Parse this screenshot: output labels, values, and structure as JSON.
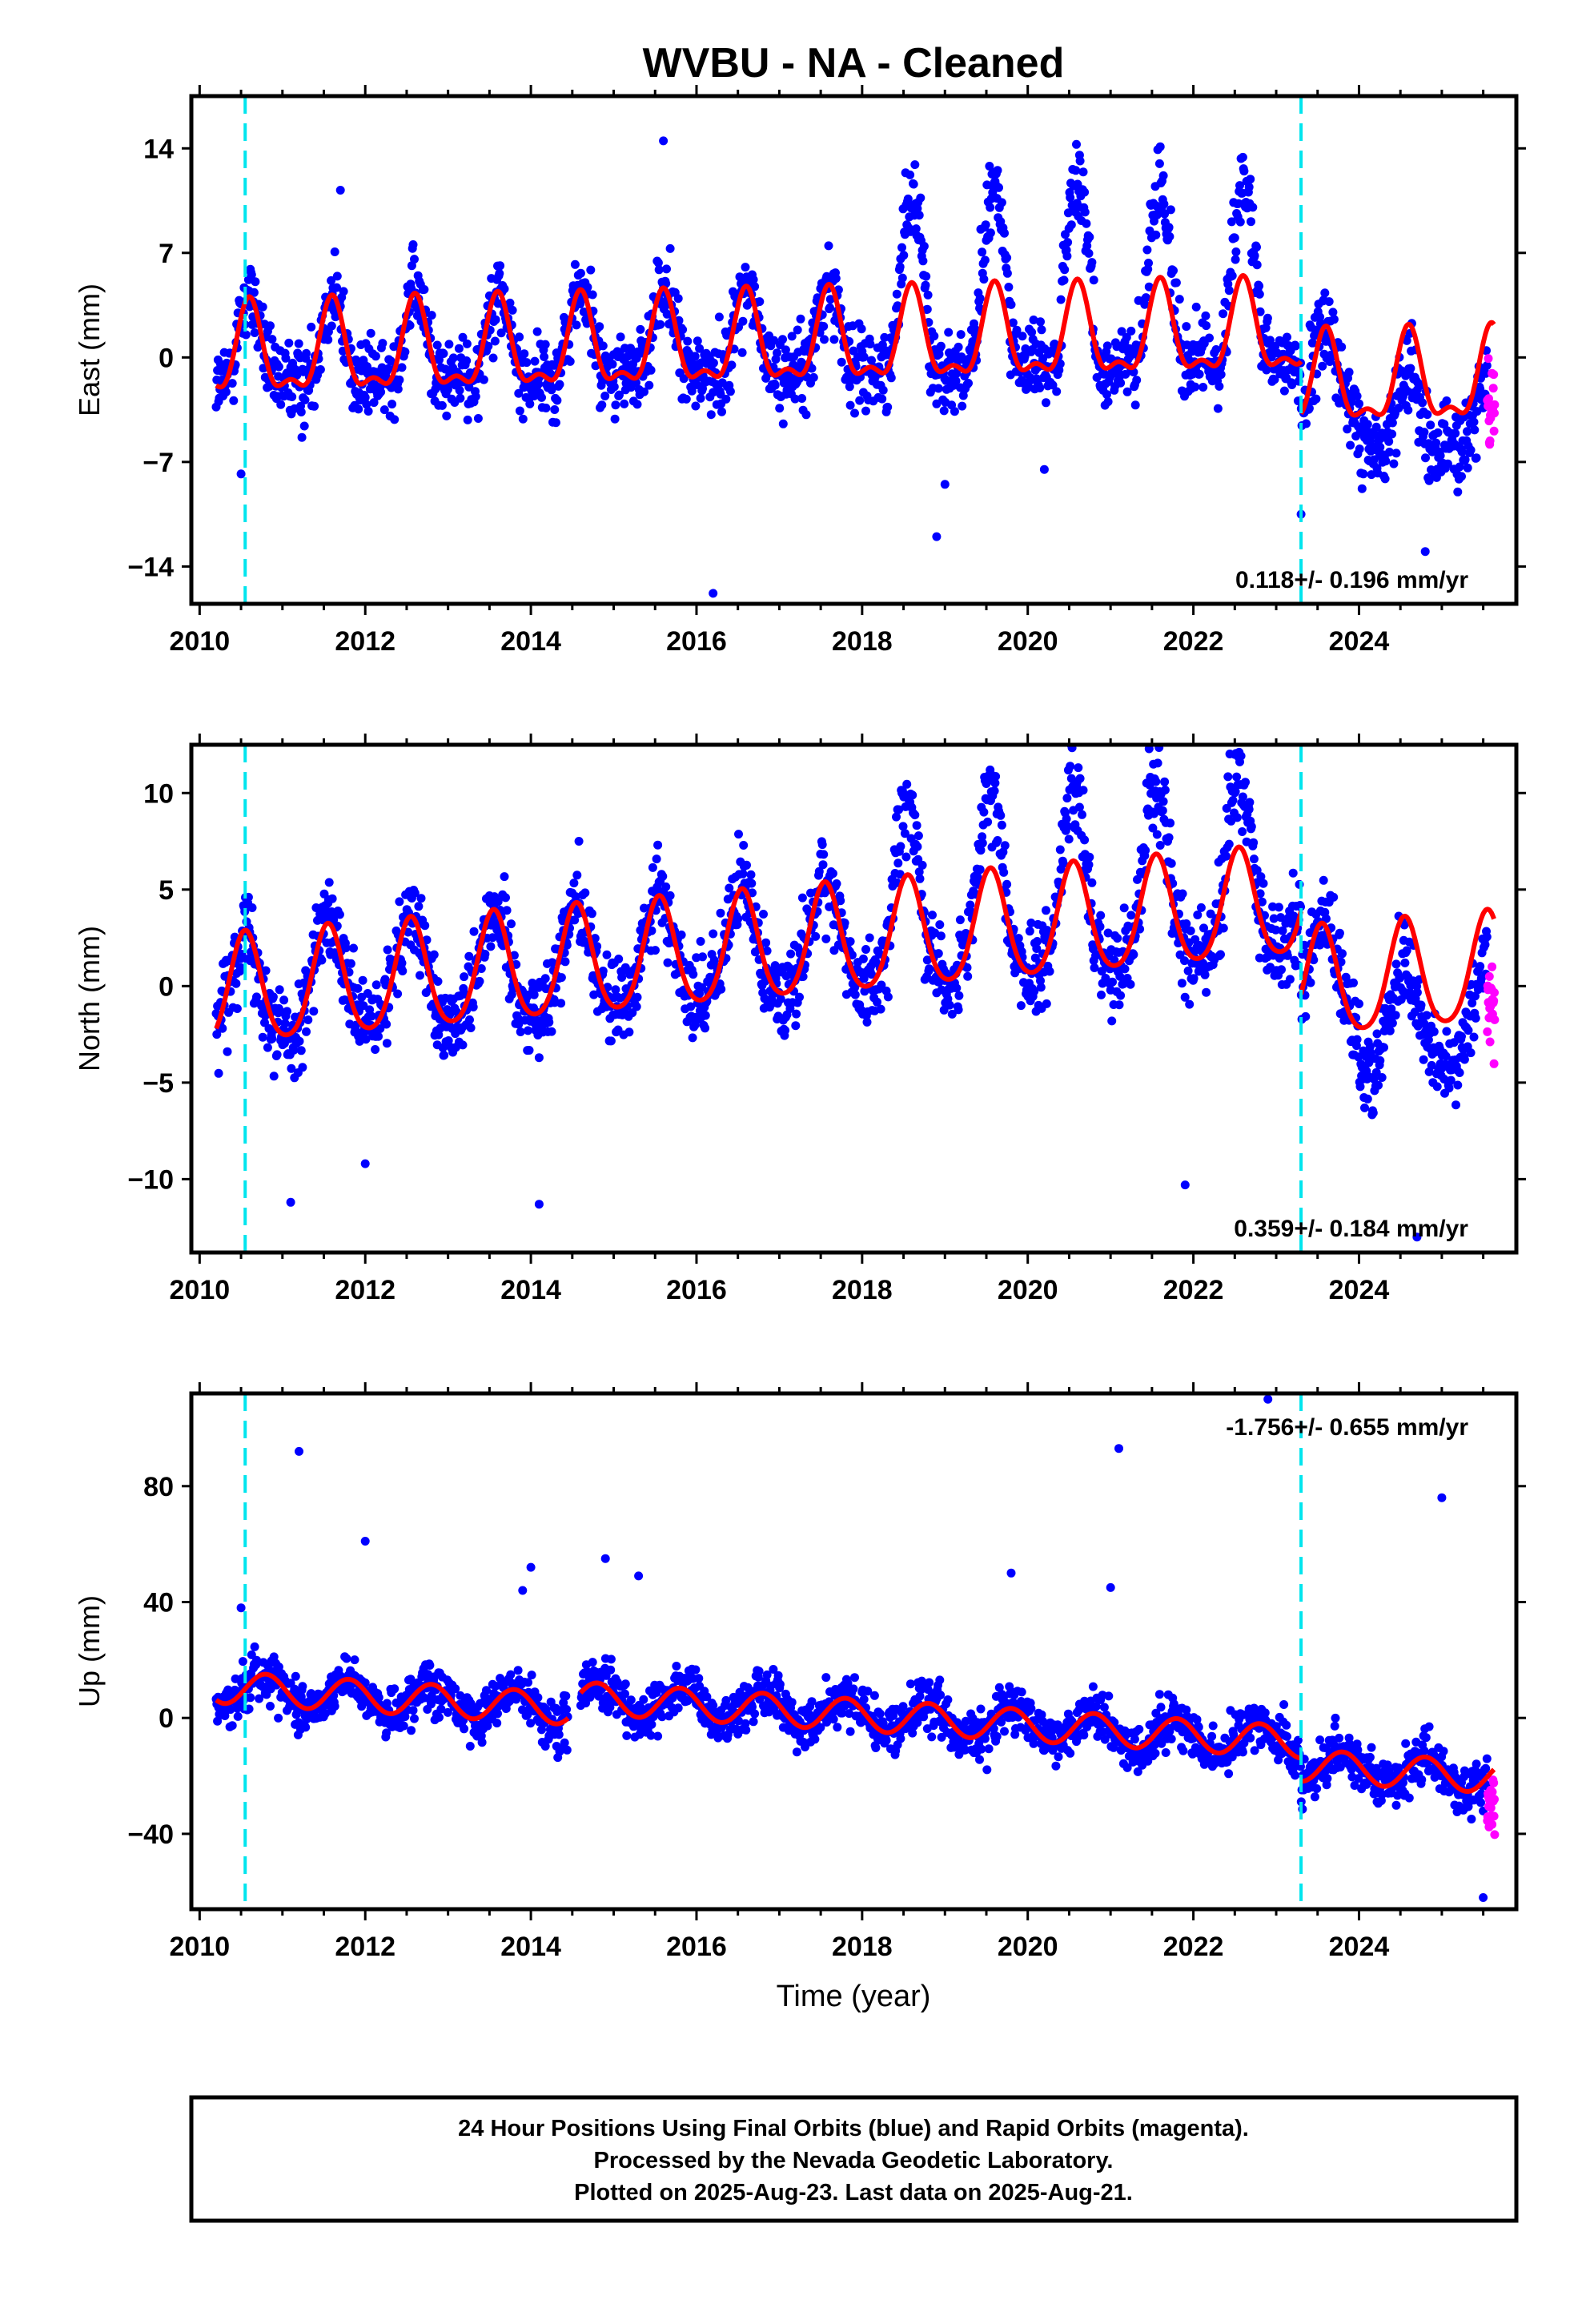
{
  "title": "WVBU  - NA - Cleaned",
  "footer": {
    "line1": "24 Hour Positions Using Final Orbits (blue) and Rapid Orbits (magenta).",
    "line2": "Processed by the Nevada Geodetic Laboratory.",
    "line3": "Plotted on 2025-Aug-23. Last data on 2025-Aug-21."
  },
  "colors": {
    "final": "#0000ff",
    "rapid": "#ff00ff",
    "model": "#ff0000",
    "event": "#00e5ee",
    "axis": "#000000"
  },
  "xlabel": "Time (year)",
  "chart_data": [
    {
      "type": "scatter",
      "component": "east",
      "ylabel": "East (mm)",
      "xlim": [
        2009.9,
        2025.9
      ],
      "ylim": [
        -16.5,
        17.5
      ],
      "yticks": [
        14,
        7,
        0,
        -7,
        -14
      ],
      "ytick_labels": [
        "14",
        "7",
        "0",
        "−7",
        "−14"
      ],
      "xticks": [
        2010,
        2012,
        2014,
        2016,
        2018,
        2020,
        2022,
        2024
      ],
      "rate_label": "0.118+/- 0.196 mm/yr",
      "rate_position": "bottom-right",
      "event_lines": [
        2010.55,
        2023.3
      ],
      "model": {
        "segments": [
          {
            "start": 2010.2,
            "end": 2023.3,
            "offset": 0.0,
            "slope": 0.118
          },
          {
            "start": 2023.3,
            "end": 2025.63,
            "offset": -3.5,
            "slope": 0.118
          }
        ],
        "annual_amp": 2.8,
        "semiannual_amp": 1.2,
        "peak": 0.6
      },
      "outliers": [
        [
          2010.5,
          -7.8
        ],
        [
          2011.7,
          11.2
        ],
        [
          2015.6,
          14.5
        ],
        [
          2016.2,
          -15.8
        ],
        [
          2018.9,
          -12.0
        ],
        [
          2019.0,
          -8.5
        ],
        [
          2020.2,
          -7.5
        ],
        [
          2023.3,
          -10.5
        ],
        [
          2024.8,
          -13.0
        ]
      ]
    },
    {
      "type": "scatter",
      "component": "north",
      "ylabel": "North (mm)",
      "xlim": [
        2009.9,
        2025.9
      ],
      "ylim": [
        -13.8,
        12.5
      ],
      "yticks": [
        10,
        5,
        0,
        -5,
        -10
      ],
      "ytick_labels": [
        "10",
        "5",
        "0",
        "−5",
        "−10"
      ],
      "xticks": [
        2010,
        2012,
        2014,
        2016,
        2018,
        2020,
        2022,
        2024
      ],
      "rate_label": "0.359+/- 0.184 mm/yr",
      "rate_position": "bottom-right",
      "event_lines": [
        2010.55,
        2023.3
      ],
      "model": {
        "segments": [
          {
            "start": 2010.2,
            "end": 2023.3,
            "offset": -0.5,
            "slope": 0.359
          },
          {
            "start": 2023.3,
            "end": 2025.63,
            "offset": -4.8,
            "slope": 0.359
          }
        ],
        "annual_amp": 2.8,
        "semiannual_amp": 0.4,
        "peak": 0.55
      },
      "outliers": [
        [
          2011.1,
          -11.2
        ],
        [
          2012.0,
          -9.2
        ],
        [
          2014.1,
          -11.3
        ],
        [
          2021.9,
          -10.3
        ],
        [
          2022.5,
          12.0
        ],
        [
          2024.7,
          -13.0
        ]
      ]
    },
    {
      "type": "scatter",
      "component": "up",
      "ylabel": "Up (mm)",
      "xlim": [
        2009.9,
        2025.9
      ],
      "ylim": [
        -66,
        112
      ],
      "yticks": [
        80,
        40,
        0,
        -40
      ],
      "ytick_labels": [
        "80",
        "40",
        "0",
        "−40"
      ],
      "xticks": [
        2010,
        2012,
        2014,
        2016,
        2018,
        2020,
        2022,
        2024
      ],
      "rate_label": "-1.756+/- 0.655 mm/yr",
      "rate_position": "top-right",
      "event_lines": [
        2010.55,
        2023.3
      ],
      "model": {
        "segments": [
          {
            "start": 2010.2,
            "end": 2014.45,
            "offset": 11.0,
            "slope": -1.756
          },
          {
            "start": 2014.6,
            "end": 2023.3,
            "offset": 15.0,
            "slope": -1.756
          },
          {
            "start": 2023.3,
            "end": 2025.63,
            "offset": 7.0,
            "slope": -1.756
          }
        ],
        "annual_amp": 5.5,
        "semiannual_amp": 0.0,
        "peak": 0.8
      },
      "outliers": [
        [
          2010.5,
          38
        ],
        [
          2011.2,
          92
        ],
        [
          2012.0,
          61
        ],
        [
          2014.0,
          52
        ],
        [
          2013.9,
          44
        ],
        [
          2014.9,
          55
        ],
        [
          2015.3,
          49
        ],
        [
          2019.8,
          50
        ],
        [
          2021.0,
          45
        ],
        [
          2021.1,
          93
        ],
        [
          2022.9,
          110
        ],
        [
          2025.0,
          76
        ],
        [
          2025.5,
          -62
        ]
      ]
    }
  ]
}
